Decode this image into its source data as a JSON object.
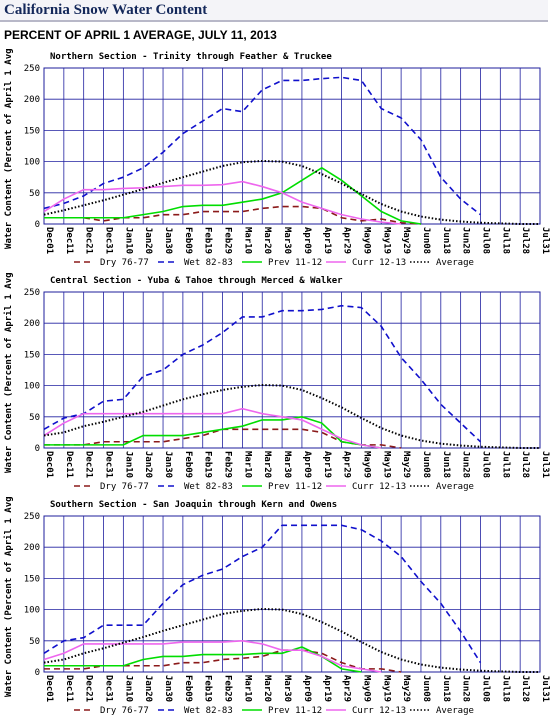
{
  "header": {
    "title": "California Snow Water Content",
    "subtitle": "PERCENT OF APRIL 1 AVERAGE, JULY 11, 2013"
  },
  "chart_data": [
    {
      "type": "line",
      "title": "Northern Section - Trinity through Feather & Truckee",
      "y_label": "Water Content (Percent of April 1 Avg)",
      "categories": [
        "Dec01",
        "Dec11",
        "Dec21",
        "Dec31",
        "Jan10",
        "Jan20",
        "Jan30",
        "Feb09",
        "Feb19",
        "Feb29",
        "Mar10",
        "Mar20",
        "Mar30",
        "Apr09",
        "Apr19",
        "Apr29",
        "May09",
        "May19",
        "May29",
        "Jun08",
        "Jun18",
        "Jun28",
        "Jul08",
        "Jul18",
        "Jul28",
        "Jul31"
      ],
      "ylim": [
        0,
        250
      ],
      "yticks": [
        0,
        50,
        100,
        150,
        200,
        250
      ],
      "grid": true,
      "series": [
        {
          "name": "Dry 76-77",
          "color": "#8b1a1a",
          "style": "dashed",
          "values": [
            10,
            10,
            10,
            5,
            10,
            10,
            15,
            15,
            20,
            20,
            20,
            25,
            28,
            28,
            25,
            10,
            5,
            8,
            2,
            0,
            null,
            null,
            null,
            null,
            null,
            null
          ]
        },
        {
          "name": "Wet 82-83",
          "color": "#1010cc",
          "style": "dashed",
          "values": [
            25,
            33,
            45,
            65,
            75,
            90,
            115,
            145,
            165,
            185,
            180,
            215,
            230,
            230,
            233,
            235,
            230,
            185,
            170,
            135,
            75,
            40,
            15,
            null,
            null,
            null
          ]
        },
        {
          "name": "Prev 11-12",
          "color": "#00dd00",
          "style": "solid",
          "values": [
            10,
            10,
            10,
            10,
            10,
            15,
            20,
            28,
            30,
            30,
            35,
            40,
            50,
            70,
            90,
            70,
            45,
            20,
            5,
            0,
            null,
            null,
            null,
            null,
            null,
            null
          ]
        },
        {
          "name": "Curr 12-13",
          "color": "#ee66ee",
          "style": "solid",
          "values": [
            20,
            40,
            55,
            55,
            57,
            58,
            60,
            62,
            62,
            63,
            68,
            60,
            50,
            35,
            25,
            15,
            8,
            3,
            0,
            null,
            null,
            null,
            null,
            null,
            null,
            null
          ]
        },
        {
          "name": "Average",
          "color": "#000000",
          "style": "dotted",
          "values": [
            15,
            22,
            30,
            38,
            47,
            56,
            66,
            75,
            84,
            93,
            99,
            101,
            100,
            93,
            80,
            65,
            48,
            32,
            20,
            12,
            7,
            4,
            2,
            1,
            0,
            0
          ]
        }
      ]
    },
    {
      "type": "line",
      "title": "Central Section - Yuba & Tahoe through Merced & Walker",
      "y_label": "Water Content (Percent of April 1 Avg)",
      "categories": [
        "Dec01",
        "Dec11",
        "Dec21",
        "Dec31",
        "Jan10",
        "Jan20",
        "Jan30",
        "Feb09",
        "Feb19",
        "Feb29",
        "Mar10",
        "Mar20",
        "Mar30",
        "Apr09",
        "Apr19",
        "Apr29",
        "May09",
        "May19",
        "May29",
        "Jun08",
        "Jun18",
        "Jun28",
        "Jul08",
        "Jul18",
        "Jul28",
        "Jul31"
      ],
      "ylim": [
        0,
        250
      ],
      "yticks": [
        0,
        50,
        100,
        150,
        200,
        250
      ],
      "grid": true,
      "series": [
        {
          "name": "Dry 76-77",
          "color": "#8b1a1a",
          "style": "dashed",
          "values": [
            5,
            5,
            5,
            10,
            10,
            10,
            10,
            15,
            20,
            30,
            30,
            30,
            30,
            30,
            25,
            10,
            5,
            5,
            0,
            null,
            null,
            null,
            null,
            null,
            null,
            null
          ]
        },
        {
          "name": "Wet 82-83",
          "color": "#1010cc",
          "style": "dashed",
          "values": [
            30,
            48,
            55,
            75,
            78,
            115,
            125,
            150,
            165,
            185,
            210,
            210,
            220,
            220,
            222,
            228,
            225,
            195,
            145,
            110,
            70,
            40,
            10,
            null,
            null,
            null
          ]
        },
        {
          "name": "Prev 11-12",
          "color": "#00dd00",
          "style": "solid",
          "values": [
            5,
            5,
            5,
            5,
            5,
            20,
            20,
            20,
            25,
            30,
            35,
            45,
            45,
            50,
            40,
            10,
            5,
            0,
            null,
            null,
            null,
            null,
            null,
            null,
            null,
            null
          ]
        },
        {
          "name": "Curr 12-13",
          "color": "#ee66ee",
          "style": "solid",
          "values": [
            20,
            40,
            55,
            55,
            55,
            55,
            55,
            55,
            55,
            55,
            63,
            55,
            50,
            45,
            30,
            15,
            5,
            0,
            null,
            null,
            null,
            null,
            null,
            null,
            null,
            null
          ]
        },
        {
          "name": "Average",
          "color": "#000000",
          "style": "dotted",
          "values": [
            20,
            25,
            35,
            42,
            50,
            58,
            68,
            78,
            86,
            93,
            98,
            101,
            100,
            93,
            80,
            65,
            48,
            32,
            20,
            12,
            7,
            4,
            2,
            1,
            0,
            0
          ]
        }
      ]
    },
    {
      "type": "line",
      "title": "Southern Section - San Joaquin through Kern and Owens",
      "y_label": "Water Content (Percent of April 1 Avg)",
      "categories": [
        "Dec01",
        "Dec11",
        "Dec21",
        "Dec31",
        "Jan10",
        "Jan20",
        "Jan30",
        "Feb09",
        "Feb19",
        "Feb29",
        "Mar10",
        "Mar20",
        "Mar30",
        "Apr09",
        "Apr19",
        "Apr29",
        "May09",
        "May19",
        "May29",
        "Jun08",
        "Jun18",
        "Jun28",
        "Jul08",
        "Jul18",
        "Jul28",
        "Jul31"
      ],
      "ylim": [
        0,
        250
      ],
      "yticks": [
        0,
        50,
        100,
        150,
        200,
        250
      ],
      "grid": true,
      "series": [
        {
          "name": "Dry 76-77",
          "color": "#8b1a1a",
          "style": "dashed",
          "values": [
            5,
            5,
            5,
            10,
            10,
            10,
            10,
            15,
            15,
            20,
            22,
            25,
            35,
            35,
            30,
            15,
            5,
            5,
            0,
            null,
            null,
            null,
            null,
            null,
            null,
            null
          ]
        },
        {
          "name": "Wet 82-83",
          "color": "#1010cc",
          "style": "dashed",
          "values": [
            30,
            50,
            55,
            75,
            75,
            75,
            110,
            140,
            155,
            165,
            185,
            200,
            235,
            235,
            235,
            235,
            228,
            210,
            185,
            145,
            110,
            65,
            15,
            null,
            null,
            null
          ]
        },
        {
          "name": "Prev 11-12",
          "color": "#00dd00",
          "style": "solid",
          "values": [
            10,
            10,
            10,
            10,
            10,
            20,
            25,
            25,
            28,
            28,
            28,
            30,
            30,
            40,
            25,
            5,
            0,
            null,
            null,
            null,
            null,
            null,
            null,
            null,
            null,
            null
          ]
        },
        {
          "name": "Curr 12-13",
          "color": "#ee66ee",
          "style": "solid",
          "values": [
            20,
            30,
            45,
            45,
            45,
            45,
            45,
            48,
            48,
            48,
            50,
            45,
            35,
            35,
            25,
            10,
            5,
            0,
            null,
            null,
            null,
            null,
            null,
            null,
            null,
            null
          ]
        },
        {
          "name": "Average",
          "color": "#000000",
          "style": "dotted",
          "values": [
            15,
            20,
            30,
            38,
            47,
            56,
            66,
            75,
            84,
            93,
            98,
            101,
            100,
            93,
            80,
            65,
            48,
            32,
            20,
            12,
            7,
            4,
            2,
            1,
            0,
            0
          ]
        }
      ]
    }
  ]
}
